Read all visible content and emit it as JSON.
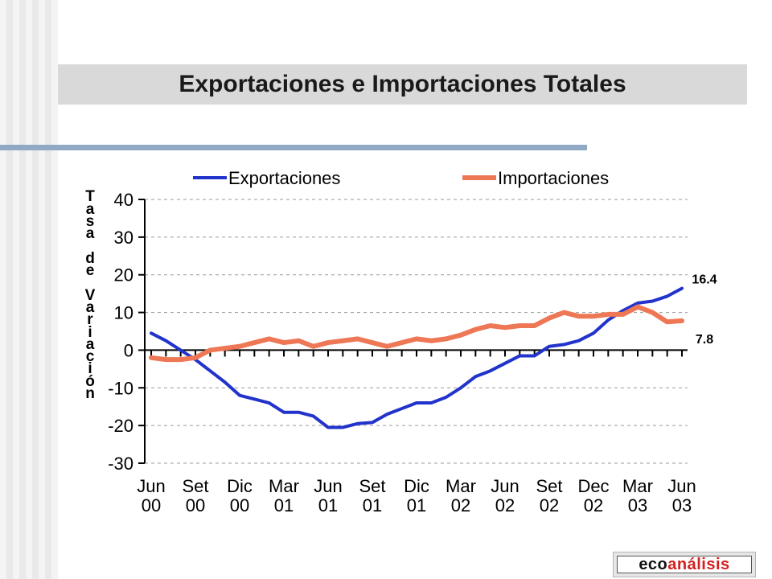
{
  "page": {
    "title": "Exportaciones e Importaciones Totales"
  },
  "logo": {
    "part1": "eco",
    "part2": "análisis"
  },
  "chart_data": {
    "type": "line",
    "title": "",
    "ylabel": "Tasa de Variación",
    "xlabel": "",
    "ylim": [
      -30,
      40
    ],
    "yticks": [
      40,
      30,
      20,
      10,
      0,
      -10,
      -20,
      -30
    ],
    "grid": true,
    "legend": "top",
    "x_tick_labels": [
      [
        "Jun",
        "00"
      ],
      [
        "Set",
        "00"
      ],
      [
        "Dic",
        "00"
      ],
      [
        "Mar",
        "01"
      ],
      [
        "Jun",
        "01"
      ],
      [
        "Set",
        "01"
      ],
      [
        "Dic",
        "01"
      ],
      [
        "Mar",
        "02"
      ],
      [
        "Jun",
        "02"
      ],
      [
        "Set",
        "02"
      ],
      [
        "Dec",
        "02"
      ],
      [
        "Mar",
        "03"
      ],
      [
        "Jun",
        "03"
      ]
    ],
    "series": [
      {
        "name": "Exportaciones",
        "color": "#2233cc",
        "values": [
          4.5,
          2.5,
          0,
          -2.5,
          -5.5,
          -8.5,
          -12,
          -13,
          -14,
          -16.5,
          -16.5,
          -17.5,
          -20.5,
          -20.5,
          -19.5,
          -19.2,
          -17,
          -15.5,
          -14,
          -14,
          -12.5,
          -10,
          -7,
          -5.5,
          -3.5,
          -1.5,
          -1.5,
          1,
          1.5,
          2.5,
          4.5,
          8,
          10.5,
          12.5,
          13,
          14.3,
          16.4
        ],
        "end_label": "16.4"
      },
      {
        "name": "Importaciones",
        "color": "#ee7755",
        "values": [
          -2,
          -2.5,
          -2.5,
          -2,
          0,
          0.5,
          1,
          2,
          3,
          2,
          2.5,
          1,
          2,
          2.5,
          3,
          2,
          1,
          2,
          3,
          2.5,
          3,
          4,
          5.5,
          6.5,
          6,
          6.5,
          6.5,
          8.5,
          10,
          9,
          9,
          9.5,
          9.5,
          11.5,
          10,
          7.5,
          7.8
        ],
        "end_label": "7.8"
      }
    ]
  }
}
